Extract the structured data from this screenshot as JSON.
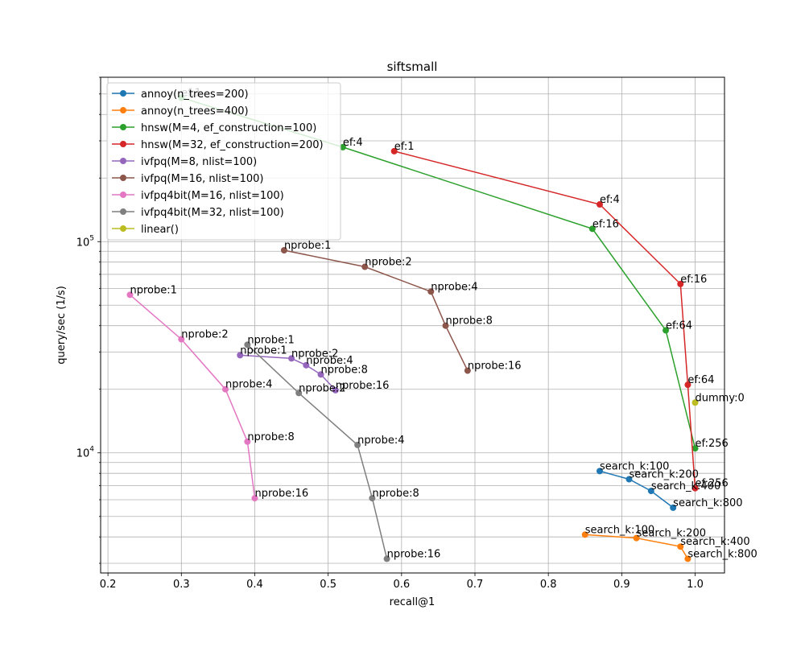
{
  "chart_data": {
    "type": "line",
    "title": "siftsmall",
    "xlabel": "recall@1",
    "ylabel": "query/sec (1/s)",
    "xlim": [
      0.19,
      1.04
    ],
    "ylim": [
      2700,
      600000
    ],
    "yscale": "log",
    "grid": true,
    "legend_position": "upper-left",
    "x_ticks": [
      0.2,
      0.3,
      0.4,
      0.5,
      0.6,
      0.7,
      0.8,
      0.9,
      1.0
    ],
    "x_tick_labels": [
      "0.2",
      "0.3",
      "0.4",
      "0.5",
      "0.6",
      "0.7",
      "0.8",
      "0.9",
      "1.0"
    ],
    "y_major_ticks": [
      {
        "value": 10000,
        "base": "10",
        "exp": "4"
      },
      {
        "value": 100000,
        "base": "10",
        "exp": "5"
      }
    ],
    "series": [
      {
        "name": "annoy(n_trees=200)",
        "color": "#1f77b4",
        "points": [
          {
            "x": 0.87,
            "y": 8200,
            "label": "search_k:100"
          },
          {
            "x": 0.91,
            "y": 7500,
            "label": "search_k:200"
          },
          {
            "x": 0.94,
            "y": 6600,
            "label": "search_k:400"
          },
          {
            "x": 0.97,
            "y": 5500,
            "label": "search_k:800"
          }
        ]
      },
      {
        "name": "annoy(n_trees=400)",
        "color": "#ff7f0e",
        "points": [
          {
            "x": 0.85,
            "y": 4100,
            "label": "search_k:100"
          },
          {
            "x": 0.92,
            "y": 3950,
            "label": "search_k:200"
          },
          {
            "x": 0.98,
            "y": 3600,
            "label": "search_k:400"
          },
          {
            "x": 0.99,
            "y": 3150,
            "label": "search_k:800"
          }
        ]
      },
      {
        "name": "hnsw(M=4, ef_construction=100)",
        "color": "#2ca02c",
        "points": [
          {
            "x": 0.3,
            "y": 480000,
            "label": "ef:1"
          },
          {
            "x": 0.52,
            "y": 280000,
            "label": "ef:4"
          },
          {
            "x": 0.86,
            "y": 115000,
            "label": "ef:16"
          },
          {
            "x": 0.96,
            "y": 38000,
            "label": "ef:64"
          },
          {
            "x": 1.0,
            "y": 10500,
            "label": "ef:256"
          }
        ]
      },
      {
        "name": "hnsw(M=32, ef_construction=200)",
        "color": "#d62728",
        "points": [
          {
            "x": 0.59,
            "y": 268000,
            "label": "ef:1"
          },
          {
            "x": 0.87,
            "y": 150000,
            "label": "ef:4"
          },
          {
            "x": 0.98,
            "y": 63000,
            "label": "ef:16"
          },
          {
            "x": 0.99,
            "y": 21000,
            "label": "ef:64"
          },
          {
            "x": 1.0,
            "y": 6800,
            "label": "ef:256"
          }
        ]
      },
      {
        "name": "ivfpq(M=8, nlist=100)",
        "color": "#9467bd",
        "points": [
          {
            "x": 0.38,
            "y": 29000,
            "label": "nprobe:1"
          },
          {
            "x": 0.45,
            "y": 28000,
            "label": "nprobe:2"
          },
          {
            "x": 0.47,
            "y": 26000,
            "label": "nprobe:4"
          },
          {
            "x": 0.49,
            "y": 23500,
            "label": "nprobe:8"
          },
          {
            "x": 0.51,
            "y": 19800,
            "label": "nprobe:16"
          }
        ]
      },
      {
        "name": "ivfpq(M=16, nlist=100)",
        "color": "#8c564b",
        "points": [
          {
            "x": 0.44,
            "y": 91000,
            "label": "nprobe:1"
          },
          {
            "x": 0.55,
            "y": 76000,
            "label": "nprobe:2"
          },
          {
            "x": 0.64,
            "y": 58000,
            "label": "nprobe:4"
          },
          {
            "x": 0.66,
            "y": 40000,
            "label": "nprobe:8"
          },
          {
            "x": 0.69,
            "y": 24500,
            "label": "nprobe:16"
          }
        ]
      },
      {
        "name": "ivfpq4bit(M=16, nlist=100)",
        "color": "#e377c2",
        "points": [
          {
            "x": 0.23,
            "y": 56000,
            "label": "nprobe:1"
          },
          {
            "x": 0.3,
            "y": 34500,
            "label": "nprobe:2"
          },
          {
            "x": 0.36,
            "y": 20000,
            "label": "nprobe:4"
          },
          {
            "x": 0.39,
            "y": 11300,
            "label": "nprobe:8"
          },
          {
            "x": 0.4,
            "y": 6100,
            "label": "nprobe:16"
          }
        ]
      },
      {
        "name": "ivfpq4bit(M=32, nlist=100)",
        "color": "#7f7f7f",
        "points": [
          {
            "x": 0.39,
            "y": 32500,
            "label": "nprobe:1"
          },
          {
            "x": 0.46,
            "y": 19200,
            "label": "nprobe:2"
          },
          {
            "x": 0.54,
            "y": 10900,
            "label": "nprobe:4"
          },
          {
            "x": 0.56,
            "y": 6100,
            "label": "nprobe:8"
          },
          {
            "x": 0.58,
            "y": 3150,
            "label": "nprobe:16"
          }
        ]
      },
      {
        "name": "linear()",
        "color": "#bcbd22",
        "points": [
          {
            "x": 1.0,
            "y": 17300,
            "label": "dummy:0"
          }
        ]
      }
    ]
  }
}
